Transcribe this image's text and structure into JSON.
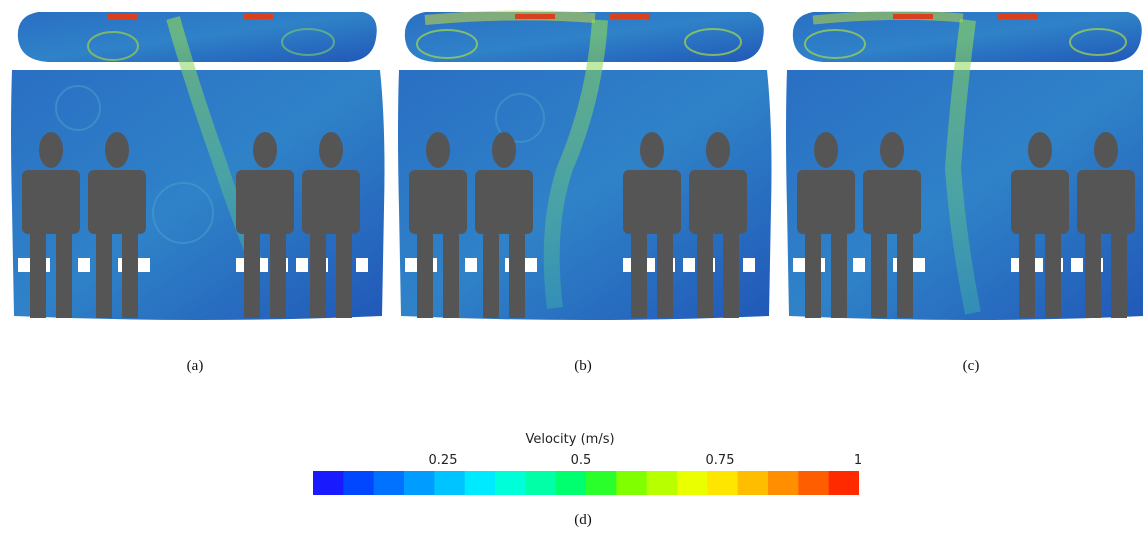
{
  "figure": {
    "panels": [
      {
        "id": "a",
        "caption": "(a)"
      },
      {
        "id": "b",
        "caption": "(b)"
      },
      {
        "id": "c",
        "caption": "(c)"
      }
    ],
    "colorbar": {
      "title": "Velocity (m/s)",
      "caption": "(d)",
      "ticks": [
        "0.25",
        "0.5",
        "0.75",
        "1"
      ],
      "min": 0,
      "max": 1,
      "colors": [
        "#1a1aff",
        "#0047ff",
        "#0072ff",
        "#009cff",
        "#00c4ff",
        "#00eaff",
        "#00ffd9",
        "#00ffa6",
        "#00ff6e",
        "#2bff2b",
        "#7fff00",
        "#b8ff00",
        "#eaff00",
        "#ffe600",
        "#ffbd00",
        "#ff8f00",
        "#ff5e00",
        "#ff2a00"
      ]
    }
  }
}
